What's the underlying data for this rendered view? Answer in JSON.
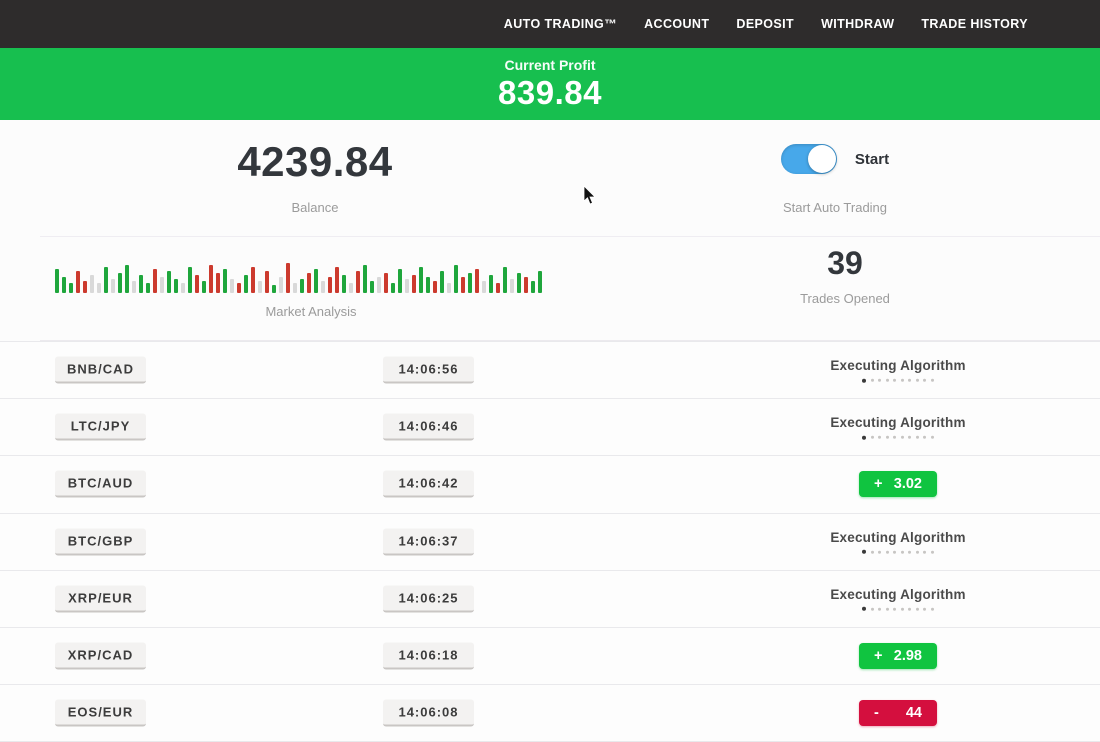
{
  "nav": {
    "items": [
      "AUTO TRADING™",
      "ACCOUNT",
      "DEPOSIT",
      "WITHDRAW",
      "TRADE HISTORY"
    ]
  },
  "profit_banner": {
    "label": "Current Profit",
    "value": "839.84",
    "bg_color": "#17bf4f"
  },
  "summary": {
    "balance": {
      "value": "4239.84",
      "label": "Balance"
    },
    "auto_trading": {
      "toggle_state": "on",
      "toggle_label": "Start",
      "label": "Start Auto Trading",
      "toggle_color": "#47a8ea"
    },
    "trades_opened": {
      "value": "39",
      "label": "Trades Opened"
    }
  },
  "chart_data": {
    "type": "bar",
    "title": "Market Analysis",
    "note": "decorative candlestick-style activity strip, no axes or tick labels shown",
    "palette": {
      "g": "#1fa63c",
      "r": "#cc3a2e",
      "l": "#d9d9d9"
    },
    "bars": [
      [
        24,
        "g"
      ],
      [
        16,
        "g"
      ],
      [
        10,
        "g"
      ],
      [
        22,
        "r"
      ],
      [
        12,
        "r"
      ],
      [
        18,
        "l"
      ],
      [
        10,
        "l"
      ],
      [
        26,
        "g"
      ],
      [
        14,
        "l"
      ],
      [
        20,
        "g"
      ],
      [
        28,
        "g"
      ],
      [
        12,
        "l"
      ],
      [
        18,
        "g"
      ],
      [
        10,
        "g"
      ],
      [
        24,
        "r"
      ],
      [
        16,
        "l"
      ],
      [
        22,
        "g"
      ],
      [
        14,
        "g"
      ],
      [
        10,
        "l"
      ],
      [
        26,
        "g"
      ],
      [
        18,
        "r"
      ],
      [
        12,
        "g"
      ],
      [
        28,
        "r"
      ],
      [
        20,
        "r"
      ],
      [
        24,
        "g"
      ],
      [
        14,
        "l"
      ],
      [
        10,
        "r"
      ],
      [
        18,
        "g"
      ],
      [
        26,
        "r"
      ],
      [
        12,
        "l"
      ],
      [
        22,
        "r"
      ],
      [
        8,
        "g"
      ],
      [
        16,
        "l"
      ],
      [
        30,
        "r"
      ],
      [
        10,
        "l"
      ],
      [
        14,
        "g"
      ],
      [
        20,
        "r"
      ],
      [
        24,
        "g"
      ],
      [
        12,
        "l"
      ],
      [
        16,
        "r"
      ],
      [
        26,
        "r"
      ],
      [
        18,
        "g"
      ],
      [
        10,
        "l"
      ],
      [
        22,
        "r"
      ],
      [
        28,
        "g"
      ],
      [
        12,
        "g"
      ],
      [
        16,
        "l"
      ],
      [
        20,
        "r"
      ],
      [
        10,
        "g"
      ],
      [
        24,
        "g"
      ],
      [
        14,
        "l"
      ],
      [
        18,
        "r"
      ],
      [
        26,
        "g"
      ],
      [
        16,
        "g"
      ],
      [
        12,
        "r"
      ],
      [
        22,
        "g"
      ],
      [
        10,
        "l"
      ],
      [
        28,
        "g"
      ],
      [
        16,
        "r"
      ],
      [
        20,
        "g"
      ],
      [
        24,
        "r"
      ],
      [
        12,
        "l"
      ],
      [
        18,
        "g"
      ],
      [
        10,
        "r"
      ],
      [
        26,
        "g"
      ],
      [
        14,
        "l"
      ],
      [
        20,
        "g"
      ],
      [
        16,
        "r"
      ],
      [
        12,
        "g"
      ],
      [
        22,
        "g"
      ]
    ]
  },
  "trades_table": {
    "rows": [
      {
        "pair": "BNB/CAD",
        "time": "14:06:56",
        "status": {
          "type": "executing",
          "label": "Executing Algorithm",
          "dots_total": 10,
          "dots_active": 1
        }
      },
      {
        "pair": "LTC/JPY",
        "time": "14:06:46",
        "status": {
          "type": "executing",
          "label": "Executing Algorithm",
          "dots_total": 10,
          "dots_active": 1
        }
      },
      {
        "pair": "BTC/AUD",
        "time": "14:06:42",
        "status": {
          "type": "profit",
          "sign": "+",
          "value": "3.02"
        }
      },
      {
        "pair": "BTC/GBP",
        "time": "14:06:37",
        "status": {
          "type": "executing",
          "label": "Executing Algorithm",
          "dots_total": 10,
          "dots_active": 1
        }
      },
      {
        "pair": "XRP/EUR",
        "time": "14:06:25",
        "status": {
          "type": "executing",
          "label": "Executing Algorithm",
          "dots_total": 10,
          "dots_active": 1
        }
      },
      {
        "pair": "XRP/CAD",
        "time": "14:06:18",
        "status": {
          "type": "profit",
          "sign": "+",
          "value": "2.98"
        }
      },
      {
        "pair": "EOS/EUR",
        "time": "14:06:08",
        "status": {
          "type": "loss",
          "sign": "-",
          "value": "44"
        }
      }
    ]
  },
  "colors": {
    "nav_bg": "#2e2c2c",
    "banner_green": "#17bf4f",
    "badge_green": "#10c440",
    "badge_red": "#d40f3e",
    "toggle_blue": "#47a8ea"
  }
}
